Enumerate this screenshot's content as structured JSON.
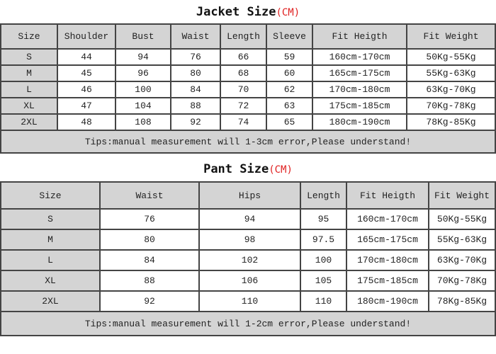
{
  "jacket": {
    "title": "Jacket Size",
    "unit": "(CM)",
    "headers": [
      "Size",
      "Shoulder",
      "Bust",
      "Waist",
      "Length",
      "Sleeve",
      "Fit Heigth",
      "Fit Weight"
    ],
    "rows": [
      [
        "S",
        "44",
        "94",
        "76",
        "66",
        "59",
        "160cm-170cm",
        "50Kg-55Kg"
      ],
      [
        "M",
        "45",
        "96",
        "80",
        "68",
        "60",
        "165cm-175cm",
        "55Kg-63Kg"
      ],
      [
        "L",
        "46",
        "100",
        "84",
        "70",
        "62",
        "170cm-180cm",
        "63Kg-70Kg"
      ],
      [
        "XL",
        "47",
        "104",
        "88",
        "72",
        "63",
        "175cm-185cm",
        "70Kg-78Kg"
      ],
      [
        "2XL",
        "48",
        "108",
        "92",
        "74",
        "65",
        "180cm-190cm",
        "78Kg-85Kg"
      ]
    ],
    "tips": "Tips:manual measurement will 1-3cm error,Please understand!"
  },
  "pant": {
    "title": "Pant Size",
    "unit": "(CM)",
    "headers": [
      "Size",
      "Waist",
      "Hips",
      "Length",
      "Fit Heigth",
      "Fit Weight"
    ],
    "rows": [
      [
        "S",
        "76",
        "94",
        "95",
        "160cm-170cm",
        "50Kg-55Kg"
      ],
      [
        "M",
        "80",
        "98",
        "97.5",
        "165cm-175cm",
        "55Kg-63Kg"
      ],
      [
        "L",
        "84",
        "102",
        "100",
        "170cm-180cm",
        "63Kg-70Kg"
      ],
      [
        "XL",
        "88",
        "106",
        "105",
        "175cm-185cm",
        "70Kg-78Kg"
      ],
      [
        "2XL",
        "92",
        "110",
        "110",
        "180cm-190cm",
        "78Kg-85Kg"
      ]
    ],
    "tips": "Tips:manual measurement will 1-2cm error,Please understand!"
  }
}
